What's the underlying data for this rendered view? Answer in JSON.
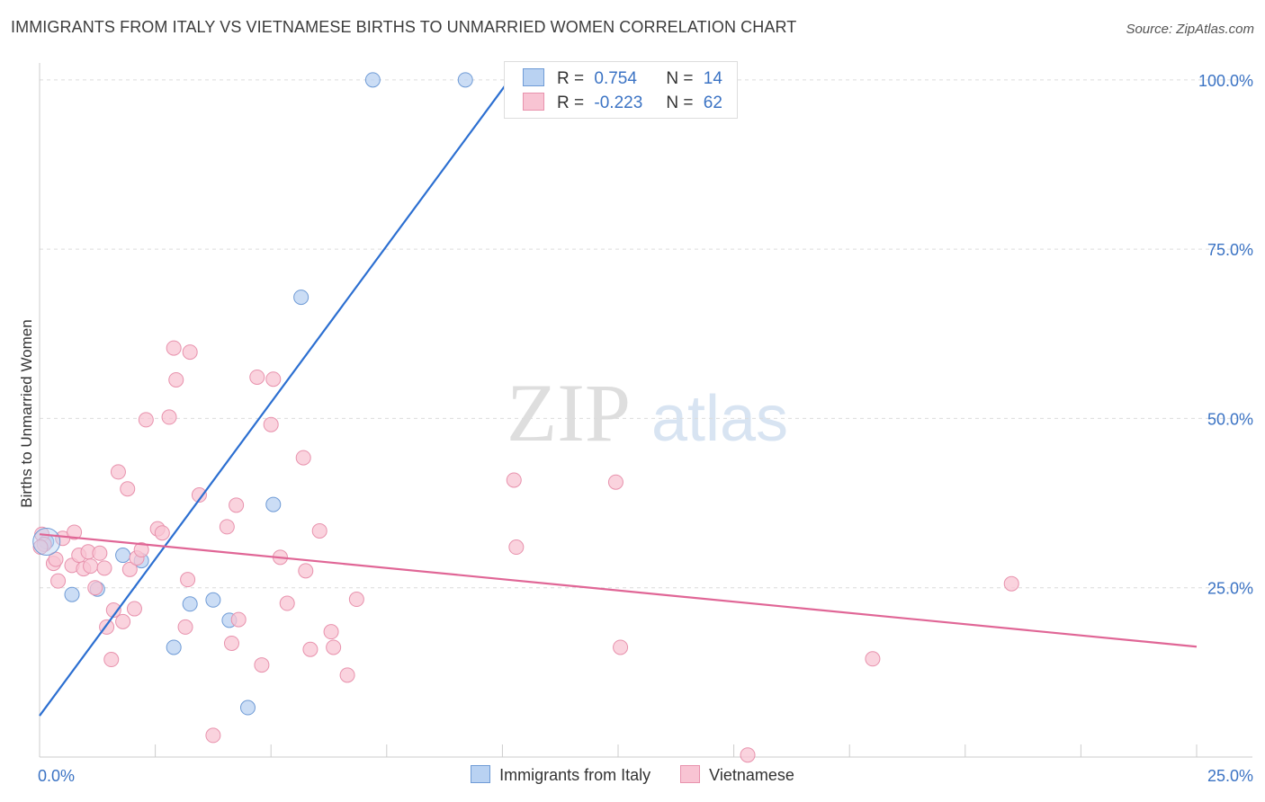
{
  "header": {
    "title": "IMMIGRANTS FROM ITALY VS VIETNAMESE BIRTHS TO UNMARRIED WOMEN CORRELATION CHART",
    "source": "Source: ZipAtlas.com"
  },
  "watermark": {
    "zip": "ZIP",
    "atlas": "atlas"
  },
  "legend": {
    "rows": [
      {
        "r_label": "R =",
        "r_value": "0.754",
        "n_label": "N =",
        "n_value": "14"
      },
      {
        "r_label": "R =",
        "r_value": "-0.223",
        "n_label": "N =",
        "n_value": "62"
      }
    ],
    "items": [
      "Immigrants from Italy",
      "Vietnamese"
    ]
  },
  "colors": {
    "italy_fill": "#b9d2f2",
    "italy_stroke": "#6f9bd6",
    "italy_line": "#2c6fd1",
    "viet_fill": "#f8c4d3",
    "viet_stroke": "#e892ad",
    "viet_line": "#e06696",
    "tick_text": "#3b73c4"
  },
  "chart_data": {
    "type": "scatter",
    "title": "IMMIGRANTS FROM ITALY VS VIETNAMESE BIRTHS TO UNMARRIED WOMEN CORRELATION CHART",
    "xlabel": "",
    "ylabel": "Births to Unmarried Women",
    "xlim": [
      0,
      25
    ],
    "ylim": [
      0,
      102.5
    ],
    "x_tick_labels": [
      "0.0%",
      "25.0%"
    ],
    "y_ticks": [
      25,
      50,
      75,
      100
    ],
    "y_tick_labels": [
      "25.0%",
      "50.0%",
      "75.0%",
      "100.0%"
    ],
    "grid": true,
    "series": [
      {
        "name": "Immigrants from Italy",
        "points": [
          [
            0.15,
            31.8
          ],
          [
            0.7,
            24.0
          ],
          [
            1.25,
            24.8
          ],
          [
            1.8,
            29.8
          ],
          [
            2.2,
            29.0
          ],
          [
            2.9,
            16.2
          ],
          [
            3.25,
            22.6
          ],
          [
            3.75,
            23.2
          ],
          [
            4.1,
            20.2
          ],
          [
            4.5,
            7.3
          ],
          [
            5.05,
            37.3
          ],
          [
            5.65,
            67.9
          ],
          [
            7.2,
            100.0
          ],
          [
            9.2,
            100.0
          ]
        ],
        "trend": {
          "x0": 0,
          "y0": 6.1,
          "x1": 10.15,
          "y1": 100.0
        }
      },
      {
        "name": "Vietnamese",
        "points": [
          [
            0.05,
            32.9
          ],
          [
            0.1,
            31.4
          ],
          [
            0.3,
            28.6
          ],
          [
            0.35,
            29.2
          ],
          [
            0.4,
            26.0
          ],
          [
            0.5,
            32.3
          ],
          [
            0.7,
            28.3
          ],
          [
            0.75,
            33.2
          ],
          [
            0.85,
            29.8
          ],
          [
            0.95,
            27.8
          ],
          [
            1.05,
            30.3
          ],
          [
            1.1,
            28.2
          ],
          [
            1.2,
            25.0
          ],
          [
            1.3,
            30.1
          ],
          [
            1.4,
            27.9
          ],
          [
            1.45,
            19.2
          ],
          [
            1.55,
            14.4
          ],
          [
            1.6,
            21.7
          ],
          [
            1.7,
            42.1
          ],
          [
            1.8,
            20.0
          ],
          [
            1.9,
            39.6
          ],
          [
            1.95,
            27.7
          ],
          [
            2.05,
            21.9
          ],
          [
            2.1,
            29.4
          ],
          [
            2.2,
            30.6
          ],
          [
            2.3,
            49.8
          ],
          [
            2.55,
            33.7
          ],
          [
            2.65,
            33.1
          ],
          [
            2.8,
            50.2
          ],
          [
            2.9,
            60.4
          ],
          [
            2.95,
            55.7
          ],
          [
            3.15,
            19.2
          ],
          [
            3.2,
            26.2
          ],
          [
            3.25,
            59.8
          ],
          [
            3.45,
            38.7
          ],
          [
            3.75,
            3.2
          ],
          [
            4.05,
            34.0
          ],
          [
            4.15,
            16.8
          ],
          [
            4.25,
            37.2
          ],
          [
            4.3,
            20.3
          ],
          [
            4.7,
            56.1
          ],
          [
            4.8,
            13.6
          ],
          [
            5.0,
            49.1
          ],
          [
            5.05,
            55.8
          ],
          [
            5.2,
            29.5
          ],
          [
            5.35,
            22.7
          ],
          [
            5.7,
            44.2
          ],
          [
            5.75,
            27.5
          ],
          [
            5.85,
            15.9
          ],
          [
            6.05,
            33.4
          ],
          [
            6.3,
            18.5
          ],
          [
            6.35,
            16.2
          ],
          [
            6.65,
            12.1
          ],
          [
            6.85,
            23.3
          ],
          [
            10.25,
            40.9
          ],
          [
            10.3,
            31.0
          ],
          [
            12.45,
            40.6
          ],
          [
            12.55,
            16.2
          ],
          [
            15.3,
            0.3
          ],
          [
            18.0,
            14.5
          ],
          [
            21.0,
            25.6
          ],
          [
            0.02,
            31.0
          ]
        ],
        "trend": {
          "x0": 0,
          "y0": 32.9,
          "x1": 25,
          "y1": 16.3
        }
      }
    ]
  }
}
